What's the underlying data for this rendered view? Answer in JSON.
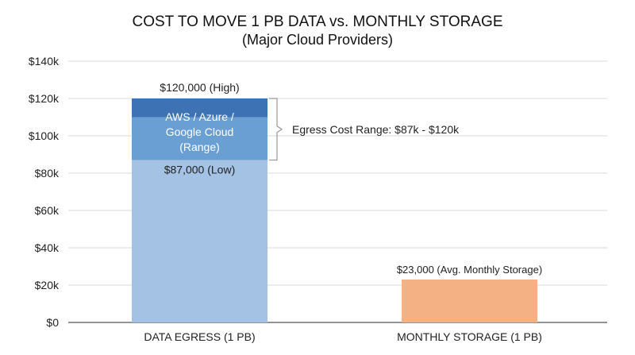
{
  "chart_data": {
    "type": "bar",
    "title": "COST TO MOVE 1 PB DATA vs. MONTHLY STORAGE",
    "subtitle": "(Major Cloud Providers)",
    "categories": [
      "DATA EGRESS (1 PB)",
      "MONTHLY STORAGE (1 PB)"
    ],
    "ylim": [
      0,
      140000
    ],
    "yticks": [
      0,
      20000,
      40000,
      60000,
      80000,
      100000,
      120000,
      140000
    ],
    "ytick_labels": [
      "$0",
      "$20k",
      "$40k",
      "$60k",
      "$80k",
      "$100k",
      "$120k",
      "$140k"
    ],
    "grid": true,
    "egress": {
      "low": 87000,
      "range_low": 87000,
      "range_high": 110000,
      "high": 120000,
      "label_high": "$120,000 (High)",
      "label_low": "$87,000 (Low)",
      "range_label_lines": [
        "AWS / Azure /",
        "Google Cloud",
        "(Range)"
      ]
    },
    "storage": {
      "value": 23000,
      "label": "$23,000 (Avg. Monthly Storage)"
    },
    "annotation": "Egress Cost Range: $87k - $120k",
    "colors": {
      "egress_low": "#a4c2e4",
      "egress_range": "#6a9fd4",
      "egress_high": "#3d73b5",
      "storage": "#f4b183",
      "grid": "#d9d9d9",
      "axis": "#555555",
      "bracket": "#999999"
    }
  }
}
